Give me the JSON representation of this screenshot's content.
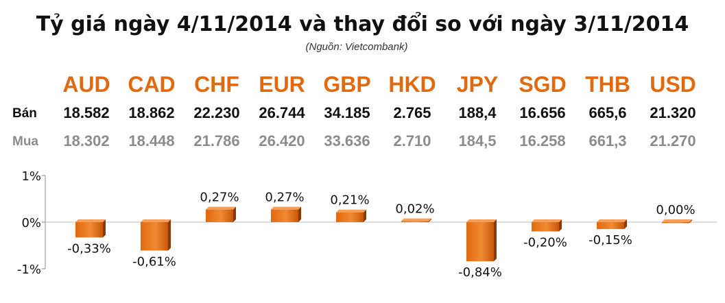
{
  "title": "Tỷ giá ngày 4/11/2014 và thay đổi so với ngày 3/11/2014",
  "source": "(Nguồn: Vietcombank)",
  "row_labels": {
    "sell": "Bán",
    "buy": "Mua"
  },
  "currencies": [
    "AUD",
    "CAD",
    "CHF",
    "EUR",
    "GBP",
    "HKD",
    "JPY",
    "SGD",
    "THB",
    "USD"
  ],
  "sell": [
    "18.582",
    "18.862",
    "22.230",
    "26.744",
    "34.185",
    "2.765",
    "188,4",
    "16.656",
    "665,6",
    "21.320"
  ],
  "buy": [
    "18.302",
    "18.448",
    "21.786",
    "26.420",
    "33.636",
    "2.710",
    "184,5",
    "16.258",
    "661,3",
    "21.270"
  ],
  "colors": {
    "bar": "#e2690e",
    "bar_dark": "#8a3a04",
    "currency_text": "#e2690e",
    "buy_text": "#8c8c8c"
  },
  "chart_data": {
    "type": "bar",
    "categories": [
      "AUD",
      "CAD",
      "CHF",
      "EUR",
      "GBP",
      "HKD",
      "JPY",
      "SGD",
      "THB",
      "USD"
    ],
    "values": [
      -0.33,
      -0.61,
      0.27,
      0.27,
      0.21,
      0.02,
      -0.84,
      -0.2,
      -0.15,
      0.0
    ],
    "data_labels": [
      "-0,33%",
      "-0,61%",
      "0,27%",
      "0,27%",
      "0,21%",
      "0,02%",
      "-0,84%",
      "-0,20%",
      "-0,15%",
      "0,00%"
    ],
    "ylim": [
      -1,
      1
    ],
    "yticks": [
      1,
      0,
      -1
    ],
    "ytick_labels": [
      "1%",
      "0%",
      "-1%"
    ],
    "grid": false,
    "legend": false
  }
}
